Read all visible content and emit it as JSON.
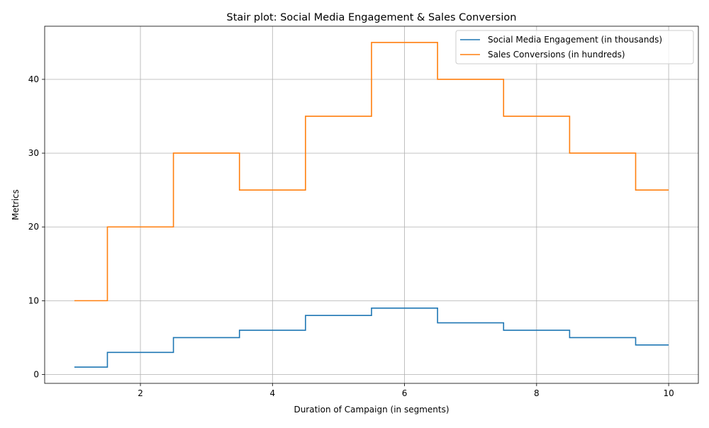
{
  "chart_data": {
    "type": "line",
    "step": "mid",
    "title": "Stair plot: Social Media Engagement & Sales Conversion",
    "xlabel": "Duration of Campaign (in segments)",
    "ylabel": "Metrics",
    "x": [
      1,
      2,
      3,
      4,
      5,
      6,
      7,
      8,
      9,
      10
    ],
    "xlim": [
      0.55,
      10.45
    ],
    "ylim": [
      -1.2,
      47.2
    ],
    "xticks": [
      2,
      4,
      6,
      8,
      10
    ],
    "yticks": [
      0,
      10,
      20,
      30,
      40
    ],
    "grid": true,
    "legend_position": "top-right",
    "series": [
      {
        "name": "Social Media Engagement (in thousands)",
        "color": "#1f77b4",
        "values": [
          1,
          3,
          5,
          6,
          8,
          9,
          7,
          6,
          5,
          4
        ]
      },
      {
        "name": "Sales Conversions (in hundreds)",
        "color": "#ff7f0e",
        "values": [
          10,
          20,
          30,
          25,
          35,
          45,
          40,
          35,
          30,
          25
        ]
      }
    ]
  }
}
